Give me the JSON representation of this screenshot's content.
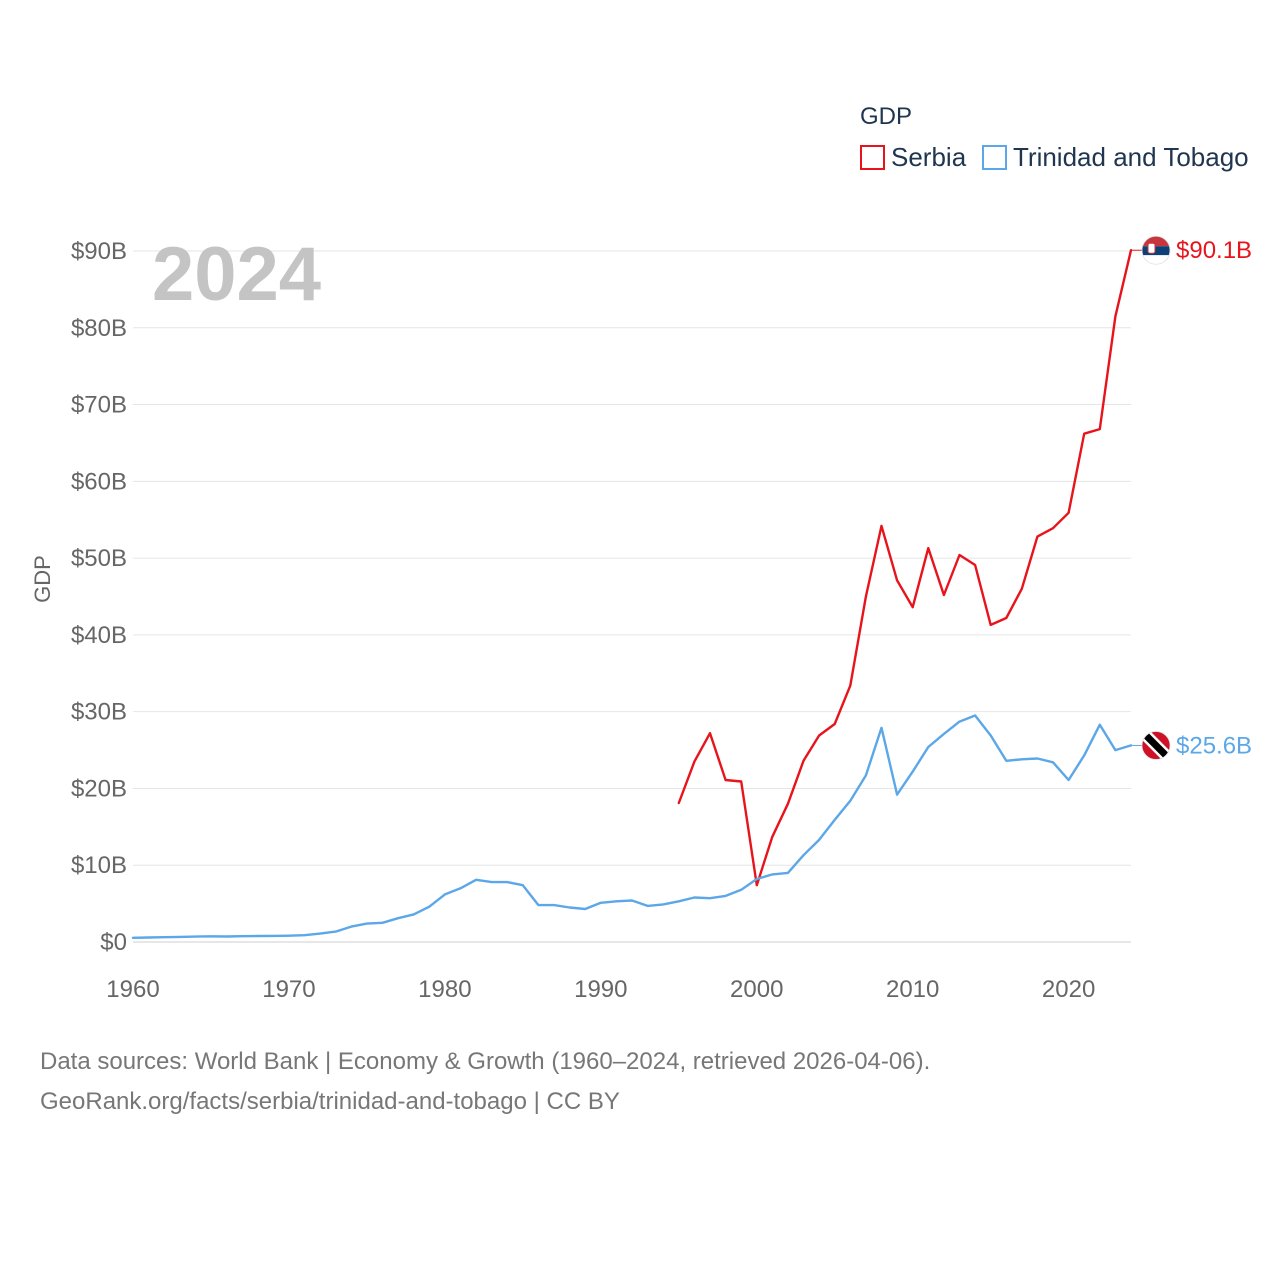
{
  "chart_data": {
    "type": "line",
    "year_label": "2024",
    "ylabel": "GDP",
    "legend_title": "GDP",
    "legend_position": "top-right",
    "xlim": [
      1960,
      2024
    ],
    "ylim": [
      0,
      90
    ],
    "x_ticks": [
      1960,
      1970,
      1980,
      1990,
      2000,
      2010,
      2020
    ],
    "y_ticks": [
      {
        "value": 0,
        "label": "$0"
      },
      {
        "value": 10,
        "label": "$10B"
      },
      {
        "value": 20,
        "label": "$20B"
      },
      {
        "value": 30,
        "label": "$30B"
      },
      {
        "value": 40,
        "label": "$40B"
      },
      {
        "value": 50,
        "label": "$50B"
      },
      {
        "value": 60,
        "label": "$60B"
      },
      {
        "value": 70,
        "label": "$70B"
      },
      {
        "value": 80,
        "label": "$80B"
      },
      {
        "value": 90,
        "label": "$90B"
      }
    ],
    "series": [
      {
        "name": "Serbia",
        "color": "#e8141c",
        "flag": "serbia-flag-icon",
        "end_label": "$90.1B",
        "x": [
          1995,
          1996,
          1997,
          1998,
          1999,
          2000,
          2001,
          2002,
          2003,
          2004,
          2005,
          2006,
          2007,
          2008,
          2009,
          2010,
          2011,
          2012,
          2013,
          2014,
          2015,
          2016,
          2017,
          2018,
          2019,
          2020,
          2021,
          2022,
          2023,
          2024
        ],
        "values": [
          18.1,
          23.5,
          27.2,
          21.1,
          20.9,
          7.4,
          13.7,
          18.0,
          23.6,
          26.9,
          28.4,
          33.4,
          45.0,
          54.2,
          47.1,
          43.6,
          51.3,
          45.2,
          50.4,
          49.1,
          41.3,
          42.2,
          46.0,
          52.8,
          53.9,
          55.9,
          66.2,
          66.8,
          81.5,
          90.1
        ]
      },
      {
        "name": "Trinidad and Tobago",
        "color": "#5ba7e8",
        "flag": "trinidad-and-tobago-flag-icon",
        "end_label": "$25.6B",
        "x": [
          1960,
          1961,
          1962,
          1963,
          1964,
          1965,
          1966,
          1967,
          1968,
          1969,
          1970,
          1971,
          1972,
          1973,
          1974,
          1975,
          1976,
          1977,
          1978,
          1979,
          1980,
          1981,
          1982,
          1983,
          1984,
          1985,
          1986,
          1987,
          1988,
          1989,
          1990,
          1991,
          1992,
          1993,
          1994,
          1995,
          1996,
          1997,
          1998,
          1999,
          2000,
          2001,
          2002,
          2003,
          2004,
          2005,
          2006,
          2007,
          2008,
          2009,
          2010,
          2011,
          2012,
          2013,
          2014,
          2015,
          2016,
          2017,
          2018,
          2019,
          2020,
          2021,
          2022,
          2023,
          2024
        ],
        "values": [
          0.55,
          0.58,
          0.62,
          0.66,
          0.7,
          0.74,
          0.72,
          0.75,
          0.78,
          0.8,
          0.82,
          0.88,
          1.1,
          1.35,
          2.0,
          2.4,
          2.5,
          3.1,
          3.6,
          4.6,
          6.2,
          7.0,
          8.1,
          7.8,
          7.8,
          7.4,
          4.8,
          4.8,
          4.5,
          4.3,
          5.1,
          5.3,
          5.4,
          4.7,
          4.9,
          5.3,
          5.8,
          5.7,
          6.0,
          6.8,
          8.2,
          8.8,
          9.0,
          11.3,
          13.3,
          15.9,
          18.4,
          21.7,
          27.9,
          19.2,
          22.2,
          25.4,
          27.1,
          28.7,
          29.5,
          26.9,
          23.6,
          23.8,
          23.9,
          23.4,
          21.1,
          24.3,
          28.3,
          25.0,
          25.6
        ]
      }
    ]
  },
  "footer": {
    "line1": "Data sources: World Bank | Economy & Growth (1960–2024, retrieved 2026-04-06).",
    "line2": "GeoRank.org/facts/serbia/trinidad-and-tobago | CC BY"
  }
}
